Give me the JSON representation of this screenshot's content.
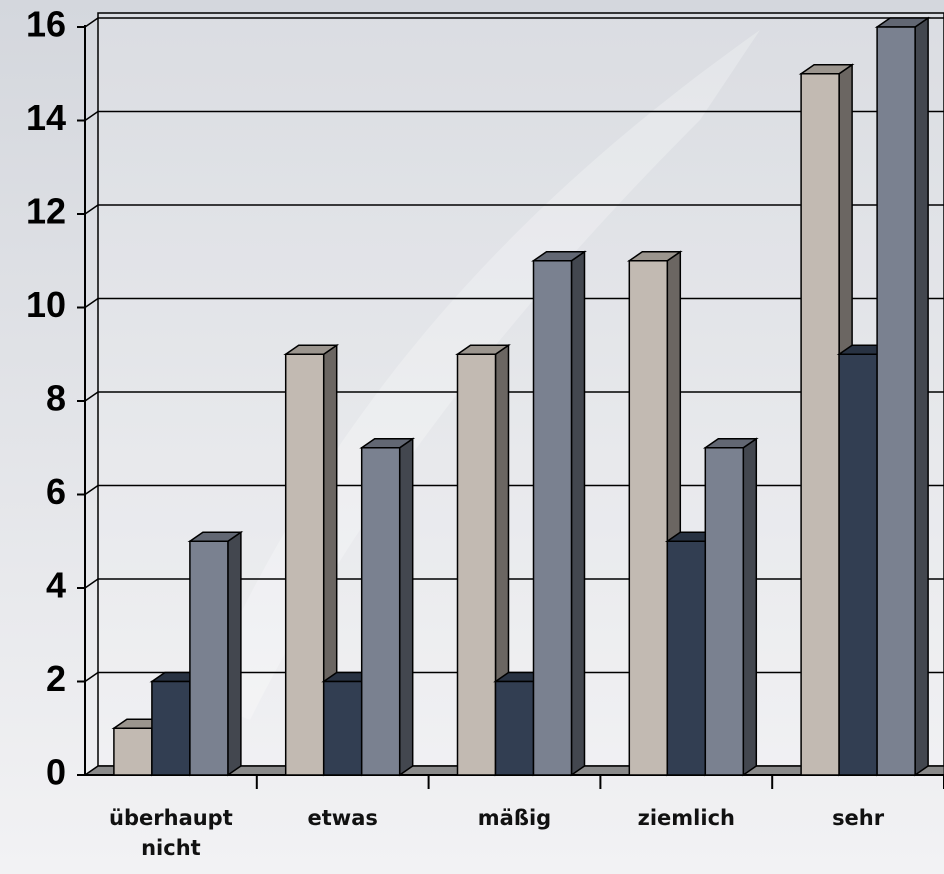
{
  "chart_data": {
    "type": "bar3d",
    "categories": [
      "überhaupt nicht",
      "etwas",
      "mäßig",
      "ziemlich",
      "sehr"
    ],
    "series": [
      {
        "color": "#c2bab2",
        "values": [
          1,
          9,
          9,
          11,
          15
        ]
      },
      {
        "color": "#323e52",
        "values": [
          2,
          2,
          2,
          5,
          9
        ]
      },
      {
        "color": "#7a8190",
        "values": [
          5,
          7,
          11,
          7,
          16
        ]
      }
    ],
    "ylim": [
      0,
      16
    ],
    "yticks": [
      0,
      2,
      4,
      6,
      8,
      10,
      12,
      14,
      16
    ],
    "grid": true
  }
}
